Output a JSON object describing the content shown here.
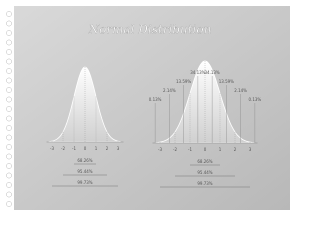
{
  "title": "Normal Distribution",
  "left_diagram": {
    "x_labels": [
      "-3",
      "-2",
      "-1",
      "0",
      "1",
      "2",
      "3"
    ],
    "ranges": [
      "68.26%",
      "95.44%",
      "99.73%"
    ]
  },
  "right_diagram": {
    "segment_labels": [
      "0.13%",
      "2.14%",
      "13.59%",
      "34.13%",
      "34.13%",
      "13.59%",
      "2.14%",
      "0.13%"
    ],
    "x_labels": [
      "-3",
      "-2",
      "-1",
      "0",
      "1",
      "2",
      "3"
    ],
    "ranges": [
      "68.26%",
      "95.44%",
      "99.73%"
    ]
  }
}
